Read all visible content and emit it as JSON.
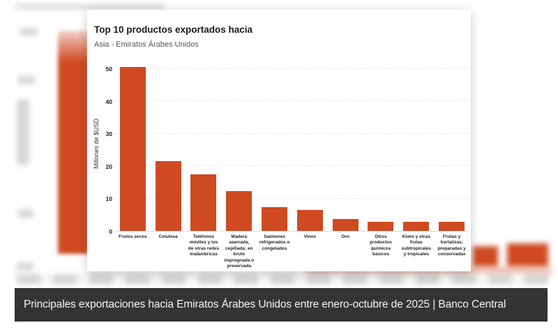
{
  "chart_data": {
    "type": "bar",
    "title": "Top 10 productos exportados hacia",
    "subtitle": "Asia - Emiratos Árabes Unidos",
    "ylabel": "Millones de $USD",
    "ylim": [
      0,
      51
    ],
    "yticks": [
      0,
      10,
      20,
      30,
      40,
      50
    ],
    "grid": "horizontal-dashed",
    "legend": "none",
    "bar_color": "#cf4a21",
    "categories": [
      "Frutos secos",
      "Celulosa",
      "Teléfonos móviles y los de otras redes inalámbricas",
      "Madera aserrada, cepillada; en bruto impregnada o preservada",
      "Salmones refrigerados o congelados",
      "Vinos",
      "Oro",
      "Otros productos químicos básicos",
      "Kiwis y otras frutas subtropicales y tropicales",
      "Frutas y hortalizas, preparadas y conservadas"
    ],
    "values": [
      50.5,
      21.5,
      17.5,
      12.2,
      7.3,
      6.4,
      3.7,
      2.9,
      2.9,
      2.7
    ]
  },
  "caption": {
    "text": "Principales exportaciones hacia Emiratos Árabes Unidos entre enero-octubre de 2025 | Banco Central",
    "background": "#343434",
    "text_color": "#f6f6f6"
  },
  "colors": {
    "bar": "#cf4a21",
    "grid": "#e9e9e9",
    "title": "#1a1a1a",
    "subtitle": "#555555",
    "caption_bg": "#343434"
  }
}
